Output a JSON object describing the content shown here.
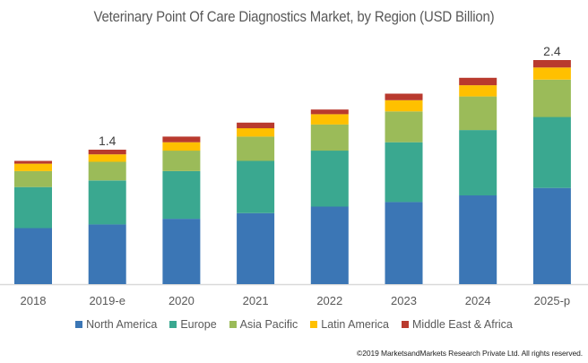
{
  "chart_data": {
    "type": "bar",
    "stacked": true,
    "title": "Veterinary Point Of Care Diagnostics Market, by Region (USD Billion)",
    "xlabel": "",
    "ylabel": "",
    "ylim": [
      0,
      2.4
    ],
    "grid": false,
    "legend_position": "bottom",
    "categories": [
      "2018",
      "2019-e",
      "2020",
      "2021",
      "2022",
      "2023",
      "2024",
      "2025-p"
    ],
    "series": [
      {
        "name": "North America",
        "color": "#3B76B5",
        "values": [
          0.6,
          0.64,
          0.7,
          0.76,
          0.83,
          0.88,
          0.95,
          1.03
        ]
      },
      {
        "name": "Europe",
        "color": "#3AA890",
        "values": [
          0.44,
          0.47,
          0.51,
          0.56,
          0.6,
          0.64,
          0.7,
          0.76
        ]
      },
      {
        "name": "Asia Pacific",
        "color": "#9BBB59",
        "values": [
          0.17,
          0.2,
          0.22,
          0.26,
          0.28,
          0.33,
          0.36,
          0.4
        ]
      },
      {
        "name": "Latin America",
        "color": "#FFC000",
        "values": [
          0.08,
          0.08,
          0.09,
          0.09,
          0.11,
          0.12,
          0.12,
          0.13
        ]
      },
      {
        "name": "Middle East & Africa",
        "color": "#B93A2E",
        "values": [
          0.03,
          0.05,
          0.06,
          0.06,
          0.05,
          0.07,
          0.08,
          0.08
        ]
      }
    ],
    "data_labels": [
      {
        "category": "2019-e",
        "text": "1.4"
      },
      {
        "category": "2025-p",
        "text": "2.4"
      }
    ]
  },
  "footer": {
    "copyright": "©2019 MarketsandMarkets Research Private Ltd. All rights reserved."
  }
}
